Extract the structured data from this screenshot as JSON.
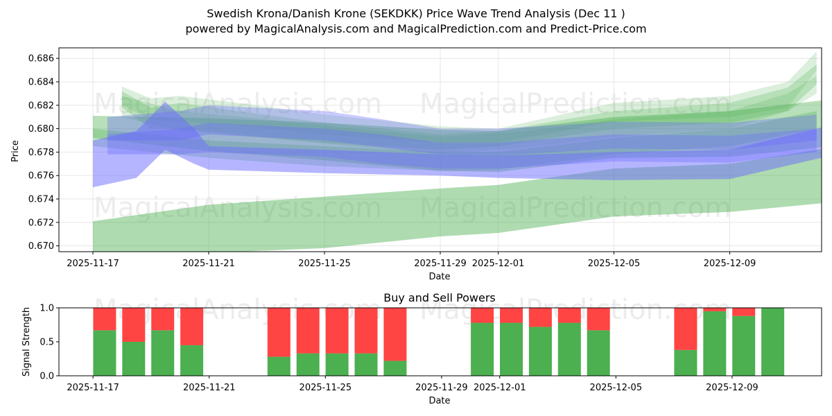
{
  "header": {
    "title_line1": "Swedish Krona/Danish Krone (SEKDKK) Price Wave Trend Analysis (Dec 11 )",
    "title_line2": "powered by MagicalAnalysis.com and MagicalPrediction.com and Predict-Price.com"
  },
  "watermarks": [
    "MagicalAnalysis.com",
    "MagicalPrediction.com"
  ],
  "chart_data": [
    {
      "type": "area",
      "title": "",
      "xlabel": "Date",
      "ylabel": "Price",
      "ylim": [
        0.6695,
        0.6869
      ],
      "xlim": [
        "2025-11-15.8",
        "2025-12-12.6"
      ],
      "x_ticks": [
        "2025-11-17",
        "2025-11-21",
        "2025-11-25",
        "2025-11-29",
        "2025-12-01",
        "2025-12-05",
        "2025-12-09"
      ],
      "y_ticks": [
        "0.670",
        "0.672",
        "0.674",
        "0.676",
        "0.678",
        "0.680",
        "0.682",
        "0.684",
        "0.686"
      ],
      "grid": true,
      "colors": {
        "green": "#4caf50",
        "blue": "#6b6bff"
      },
      "bands": [
        {
          "color": "green",
          "opacity": 0.45,
          "x": [
            0,
            4,
            8,
            12,
            14,
            18,
            22,
            25.5
          ],
          "upper": [
            0.6721,
            0.6735,
            0.6742,
            0.6749,
            0.6752,
            0.6766,
            0.677,
            0.6784
          ],
          "lower": [
            0.6693,
            0.6694,
            0.6698,
            0.6708,
            0.6711,
            0.6725,
            0.6729,
            0.6737
          ]
        },
        {
          "color": "green",
          "opacity": 0.4,
          "x": [
            0,
            4,
            8,
            12,
            14,
            18,
            22,
            25.5
          ],
          "upper": [
            0.6811,
            0.6809,
            0.6805,
            0.6799,
            0.6798,
            0.681,
            0.6815,
            0.6825
          ],
          "lower": [
            0.6792,
            0.6781,
            0.6773,
            0.6764,
            0.6763,
            0.6775,
            0.6776,
            0.6785
          ]
        },
        {
          "color": "green",
          "opacity": 0.3,
          "x": [
            0,
            4,
            8,
            12,
            14,
            18,
            22,
            25
          ],
          "upper": [
            0.68,
            0.679,
            0.6785,
            0.678,
            0.678,
            0.6792,
            0.68,
            0.6815
          ],
          "lower": [
            0.6785,
            0.6775,
            0.6768,
            0.6764,
            0.6765,
            0.6778,
            0.6785,
            0.68
          ]
        },
        {
          "color": "green",
          "opacity": 0.25,
          "x": [
            1,
            2,
            3,
            5,
            8,
            12,
            14,
            18,
            22,
            24,
            25
          ],
          "upper": [
            0.6832,
            0.6818,
            0.6822,
            0.6815,
            0.6805,
            0.6795,
            0.6798,
            0.6815,
            0.6822,
            0.6835,
            0.6855
          ],
          "lower": [
            0.6818,
            0.68,
            0.68,
            0.6795,
            0.6788,
            0.6782,
            0.6785,
            0.68,
            0.6805,
            0.6815,
            0.6838
          ]
        },
        {
          "color": "green",
          "opacity": 0.2,
          "x": [
            1,
            2,
            3,
            5,
            8,
            12,
            14,
            18,
            22,
            24,
            25
          ],
          "upper": [
            0.6836,
            0.6826,
            0.6828,
            0.6822,
            0.6812,
            0.6802,
            0.68,
            0.6822,
            0.6828,
            0.684,
            0.6866
          ],
          "lower": [
            0.682,
            0.6808,
            0.6806,
            0.6803,
            0.6795,
            0.6788,
            0.6788,
            0.6806,
            0.681,
            0.6818,
            0.685
          ]
        },
        {
          "color": "green",
          "opacity": 0.2,
          "x": [
            1,
            3,
            6,
            9,
            12,
            15,
            18,
            22,
            24,
            25
          ],
          "upper": [
            0.6828,
            0.6815,
            0.6808,
            0.68,
            0.6793,
            0.6798,
            0.6808,
            0.6815,
            0.683,
            0.6845
          ],
          "lower": [
            0.681,
            0.6798,
            0.6792,
            0.6785,
            0.6779,
            0.6784,
            0.6793,
            0.68,
            0.6815,
            0.683
          ]
        },
        {
          "color": "blue",
          "opacity": 0.5,
          "x": [
            0,
            1.5,
            2.5,
            3.5,
            4,
            8,
            12,
            14,
            18,
            22,
            25.5
          ],
          "upper": [
            0.679,
            0.6798,
            0.6823,
            0.68,
            0.6785,
            0.6782,
            0.6778,
            0.6777,
            0.678,
            0.6782,
            0.6803
          ],
          "lower": [
            0.675,
            0.6758,
            0.6782,
            0.677,
            0.6765,
            0.6762,
            0.676,
            0.6758,
            0.6756,
            0.6757,
            0.6777
          ]
        },
        {
          "color": "blue",
          "opacity": 0.35,
          "x": [
            0.5,
            3,
            4,
            8,
            10,
            12,
            14,
            18,
            22,
            25
          ],
          "upper": [
            0.681,
            0.6815,
            0.682,
            0.6815,
            0.6808,
            0.68,
            0.68,
            0.6806,
            0.6805,
            0.6812
          ],
          "lower": [
            0.679,
            0.679,
            0.6795,
            0.679,
            0.6784,
            0.6778,
            0.6777,
            0.6783,
            0.6782,
            0.679
          ]
        },
        {
          "color": "blue",
          "opacity": 0.35,
          "x": [
            0.5,
            3,
            4,
            8,
            10,
            12,
            14,
            18,
            22,
            25
          ],
          "upper": [
            0.6795,
            0.68,
            0.6805,
            0.68,
            0.6795,
            0.6788,
            0.6788,
            0.6795,
            0.6794,
            0.68
          ],
          "lower": [
            0.6778,
            0.6778,
            0.678,
            0.6776,
            0.677,
            0.6766,
            0.6766,
            0.6772,
            0.6771,
            0.678
          ]
        }
      ]
    },
    {
      "type": "bar",
      "title": "Buy and Sell Powers",
      "xlabel": "Date",
      "ylabel": "Signal Strength",
      "ylim": [
        0,
        1.0
      ],
      "y_ticks": [
        "0.0",
        "0.5",
        "1.0"
      ],
      "x_ticks": [
        "2025-11-17",
        "2025-11-21",
        "2025-11-25",
        "2025-11-29",
        "2025-12-01",
        "2025-12-05",
        "2025-12-09"
      ],
      "colors": {
        "buy": "#4caf50",
        "sell": "#ff4444"
      },
      "series": [
        {
          "name": "Buy",
          "values": [
            0.67,
            0.5,
            0.67,
            0.45,
            0.28,
            0.33,
            0.33,
            0.33,
            0.22,
            0.78,
            0.78,
            0.72,
            0.78,
            0.67,
            0.38,
            0.95,
            0.88,
            1.0
          ]
        },
        {
          "name": "Sell",
          "values": [
            0.33,
            0.5,
            0.33,
            0.55,
            0.72,
            0.67,
            0.67,
            0.67,
            0.78,
            0.22,
            0.22,
            0.28,
            0.22,
            0.33,
            0.62,
            0.05,
            0.12,
            0.0
          ]
        }
      ],
      "x": [
        1,
        2,
        3,
        4,
        7,
        8,
        9,
        10,
        11,
        14,
        15,
        16,
        17,
        18,
        21,
        22,
        23,
        24
      ]
    }
  ]
}
